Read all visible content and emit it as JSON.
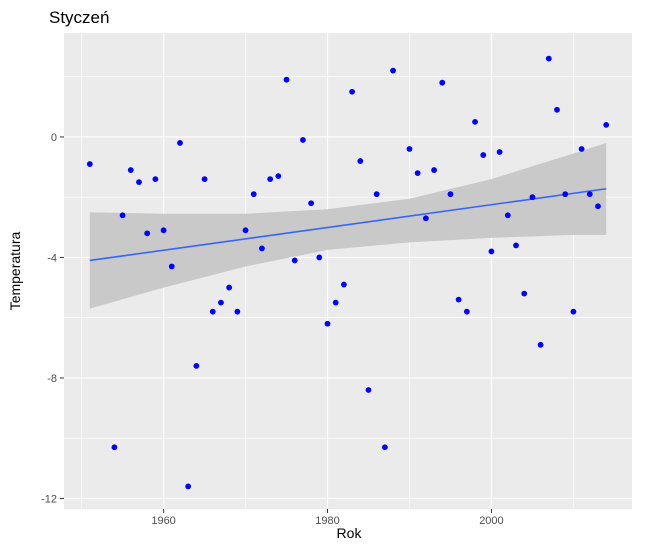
{
  "chart_data": {
    "type": "scatter",
    "title": "Styczeń",
    "xlabel": "Rok",
    "ylabel": "Temperatura",
    "xlim": [
      1947.85,
      2017.15
    ],
    "ylim": [
      -12.35,
      3.45
    ],
    "x_ticks": [
      1960,
      1980,
      2000
    ],
    "x_tick_labels": [
      "1960",
      "1980",
      "2000"
    ],
    "y_ticks": [
      0,
      -4,
      -8,
      -12
    ],
    "y_tick_labels": [
      "0",
      "-4",
      "-8",
      "-12"
    ],
    "grid": true,
    "legend": "none",
    "colors": {
      "panel": "#ebebeb",
      "grid_major": "#ffffff",
      "points": "#0000ff",
      "trend_line": "#3366ff",
      "confidence_band": "#c9c9c9"
    },
    "points": [
      {
        "x": 1951,
        "y": -0.9
      },
      {
        "x": 1954,
        "y": -10.3
      },
      {
        "x": 1955,
        "y": -2.6
      },
      {
        "x": 1956,
        "y": -1.1
      },
      {
        "x": 1957,
        "y": -1.5
      },
      {
        "x": 1958,
        "y": -3.2
      },
      {
        "x": 1959,
        "y": -1.4
      },
      {
        "x": 1960,
        "y": -3.1
      },
      {
        "x": 1961,
        "y": -4.3
      },
      {
        "x": 1962,
        "y": -0.2
      },
      {
        "x": 1963,
        "y": -11.6
      },
      {
        "x": 1964,
        "y": -7.6
      },
      {
        "x": 1965,
        "y": -1.4
      },
      {
        "x": 1966,
        "y": -5.8
      },
      {
        "x": 1967,
        "y": -5.5
      },
      {
        "x": 1968,
        "y": -5.0
      },
      {
        "x": 1969,
        "y": -5.8
      },
      {
        "x": 1970,
        "y": -3.1
      },
      {
        "x": 1971,
        "y": -1.9
      },
      {
        "x": 1972,
        "y": -3.7
      },
      {
        "x": 1973,
        "y": -1.4
      },
      {
        "x": 1974,
        "y": -1.3
      },
      {
        "x": 1975,
        "y": 1.9
      },
      {
        "x": 1976,
        "y": -4.1
      },
      {
        "x": 1977,
        "y": -0.1
      },
      {
        "x": 1978,
        "y": -2.2
      },
      {
        "x": 1979,
        "y": -4.0
      },
      {
        "x": 1980,
        "y": -6.2
      },
      {
        "x": 1981,
        "y": -5.5
      },
      {
        "x": 1982,
        "y": -4.9
      },
      {
        "x": 1983,
        "y": 1.5
      },
      {
        "x": 1984,
        "y": -0.8
      },
      {
        "x": 1985,
        "y": -8.4
      },
      {
        "x": 1986,
        "y": -1.9
      },
      {
        "x": 1987,
        "y": -10.3
      },
      {
        "x": 1988,
        "y": 2.2
      },
      {
        "x": 1990,
        "y": -0.4
      },
      {
        "x": 1991,
        "y": -1.2
      },
      {
        "x": 1992,
        "y": -2.7
      },
      {
        "x": 1993,
        "y": -1.1
      },
      {
        "x": 1994,
        "y": 1.8
      },
      {
        "x": 1995,
        "y": -1.9
      },
      {
        "x": 1996,
        "y": -5.4
      },
      {
        "x": 1997,
        "y": -5.8
      },
      {
        "x": 1998,
        "y": 0.5
      },
      {
        "x": 1999,
        "y": -0.6
      },
      {
        "x": 2000,
        "y": -3.8
      },
      {
        "x": 2001,
        "y": -0.5
      },
      {
        "x": 2002,
        "y": -2.6
      },
      {
        "x": 2003,
        "y": -3.6
      },
      {
        "x": 2004,
        "y": -5.2
      },
      {
        "x": 2005,
        "y": -2.0
      },
      {
        "x": 2006,
        "y": -6.9
      },
      {
        "x": 2007,
        "y": 2.6
      },
      {
        "x": 2008,
        "y": 0.9
      },
      {
        "x": 2009,
        "y": -1.9
      },
      {
        "x": 2010,
        "y": -5.8
      },
      {
        "x": 2011,
        "y": -0.4
      },
      {
        "x": 2012,
        "y": -1.9
      },
      {
        "x": 2013,
        "y": -2.3
      },
      {
        "x": 2014,
        "y": 0.4
      }
    ],
    "trend": {
      "x": [
        1951,
        2014
      ],
      "y": [
        -4.1,
        -1.72
      ]
    },
    "confidence_band": {
      "x": [
        1951,
        1960,
        1970,
        1980,
        1990,
        2000,
        2010,
        2014
      ],
      "upper": [
        -2.5,
        -2.55,
        -2.55,
        -2.4,
        -2.05,
        -1.4,
        -0.55,
        -0.2
      ],
      "lower": [
        -5.7,
        -5.0,
        -4.3,
        -3.75,
        -3.5,
        -3.35,
        -3.25,
        -3.25
      ]
    }
  }
}
